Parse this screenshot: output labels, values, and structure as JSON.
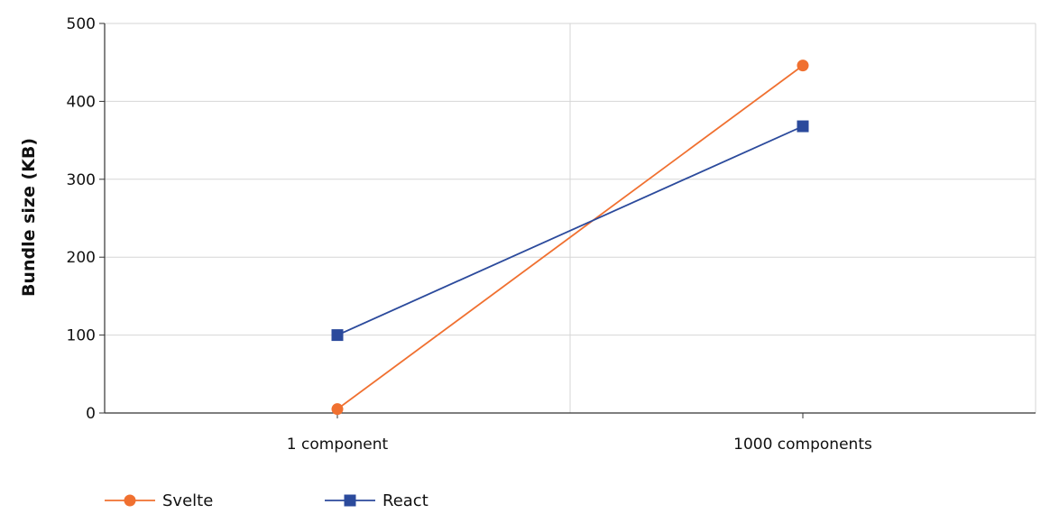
{
  "chart_data": {
    "type": "line",
    "title": "",
    "xlabel": "",
    "ylabel": "Bundle size (KB)",
    "categories": [
      "1 component",
      "1000 components"
    ],
    "ylim": [
      0,
      500
    ],
    "yticks": [
      0,
      100,
      200,
      300,
      400,
      500
    ],
    "grid": true,
    "legend_position": "bottom-left",
    "series": [
      {
        "name": "Svelte",
        "values": [
          5,
          446
        ],
        "color": "#f07030",
        "marker": "circle"
      },
      {
        "name": "React",
        "values": [
          100,
          368
        ],
        "color": "#2b4a9c",
        "marker": "square"
      }
    ]
  }
}
